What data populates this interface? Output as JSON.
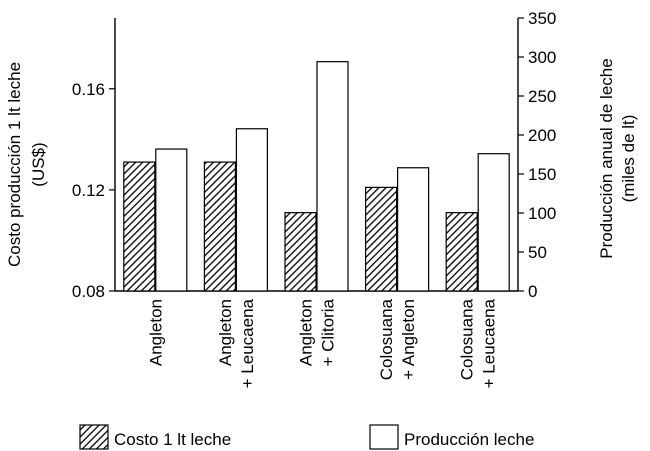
{
  "chart_data": {
    "type": "bar",
    "categories": [
      [
        "Angleton"
      ],
      [
        "Angleton",
        "+ Leucaena"
      ],
      [
        "Angleton",
        "+ Clitoria"
      ],
      [
        "Colosuana",
        "+ Angleton"
      ],
      [
        "Colosuana",
        "+ Leucaena"
      ]
    ],
    "series": [
      {
        "name": "Costo 1 lt leche",
        "axis": "left",
        "style": "hatched",
        "values": [
          0.131,
          0.131,
          0.111,
          0.121,
          0.111
        ]
      },
      {
        "name": "Producción leche",
        "axis": "right",
        "style": "white",
        "values": [
          182,
          208,
          294,
          158,
          176
        ]
      }
    ],
    "y_left": {
      "label_lines": [
        "Costo producción 1 lt leche",
        "(US$)"
      ],
      "ticks": [
        "0.08",
        "0.12",
        "0.16"
      ],
      "tick_values": [
        0.08,
        0.12,
        0.16
      ],
      "ylim": [
        0.08,
        0.188
      ]
    },
    "y_right": {
      "label_lines": [
        "Producción anual de leche",
        "(miles de lt)"
      ],
      "ticks": [
        "0",
        "50",
        "100",
        "150",
        "200",
        "250",
        "300",
        "350"
      ],
      "tick_values": [
        0,
        50,
        100,
        150,
        200,
        250,
        300,
        350
      ],
      "ylim": [
        0,
        350
      ]
    },
    "legend": {
      "placement": "bottom",
      "items": [
        {
          "label": "Costo 1 lt leche",
          "style": "hatched"
        },
        {
          "label": "Producción leche",
          "style": "white"
        }
      ]
    },
    "grid": false
  }
}
